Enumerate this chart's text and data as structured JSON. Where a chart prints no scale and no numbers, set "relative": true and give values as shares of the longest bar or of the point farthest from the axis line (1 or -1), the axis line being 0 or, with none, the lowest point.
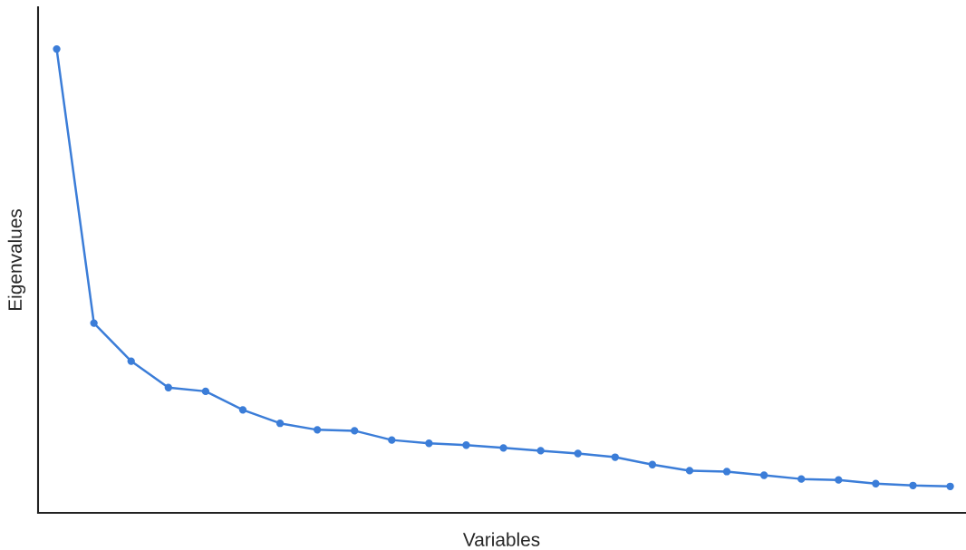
{
  "chart_data": {
    "type": "line",
    "xlabel": "Variables",
    "ylabel": "Eigenvalues",
    "relative": true,
    "categories": [
      null,
      null,
      null,
      null,
      null,
      null,
      null,
      null,
      null,
      null,
      null,
      null,
      null,
      null,
      null,
      null,
      null,
      null,
      null,
      null,
      null,
      null,
      null,
      null,
      null
    ],
    "series": [
      {
        "color": "#3b7dd8",
        "values": [
          1,
          0.409,
          0.327,
          0.27,
          0.262,
          0.222,
          0.193,
          0.179,
          0.177,
          0.157,
          0.15,
          0.146,
          0.14,
          0.134,
          0.128,
          0.12,
          0.104,
          0.091,
          0.089,
          0.081,
          0.073,
          0.071,
          0.063,
          0.059,
          0.057
        ]
      }
    ],
    "marker": "circle",
    "line_style": "solid",
    "grid": false
  }
}
